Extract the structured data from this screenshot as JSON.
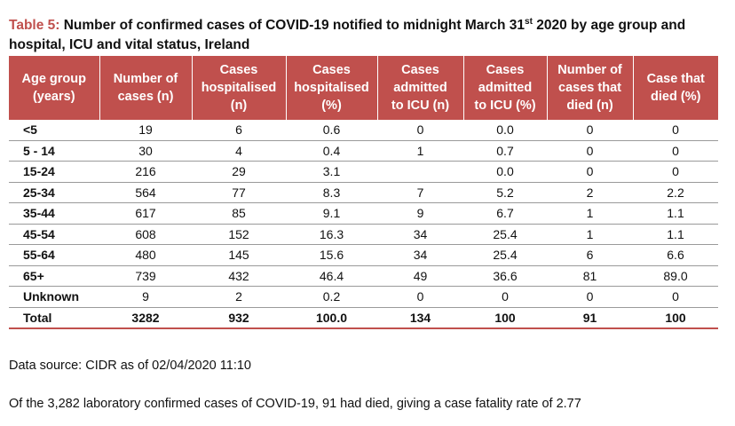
{
  "caption": {
    "label": "Table 5:",
    "text_before_sup": " Number of confirmed cases of COVID-19 notified to midnight March 31",
    "superscript": "st",
    "text_after_sup": " 2020 by age group and hospital, ICU and vital status, Ireland"
  },
  "table": {
    "headers": [
      "Age group\n(years)",
      "Number of\ncases (n)",
      "Cases\nhospitalised\n(n)",
      "Cases\nhospitalised\n(%)",
      "Cases\nadmitted\nto ICU (n)",
      "Cases\nadmitted\nto ICU (%)",
      "Number of\ncases that\ndied (n)",
      "Case that\ndied (%)"
    ],
    "rows": [
      [
        "<5",
        "19",
        "6",
        "0.6",
        "0",
        "0.0",
        "0",
        "0"
      ],
      [
        "5 - 14",
        "30",
        "4",
        "0.4",
        "1",
        "0.7",
        "0",
        "0"
      ],
      [
        "15-24",
        "216",
        "29",
        "3.1",
        "",
        "0.0",
        "0",
        "0"
      ],
      [
        "25-34",
        "564",
        "77",
        "8.3",
        "7",
        "5.2",
        "2",
        "2.2"
      ],
      [
        "35-44",
        "617",
        "85",
        "9.1",
        "9",
        "6.7",
        "1",
        "1.1"
      ],
      [
        "45-54",
        "608",
        "152",
        "16.3",
        "34",
        "25.4",
        "1",
        "1.1"
      ],
      [
        "55-64",
        "480",
        "145",
        "15.6",
        "34",
        "25.4",
        "6",
        "6.6"
      ],
      [
        "65+",
        "739",
        "432",
        "46.4",
        "49",
        "36.6",
        "81",
        "89.0"
      ],
      [
        "Unknown",
        "9",
        "2",
        "0.2",
        "0",
        "0",
        "0",
        "0"
      ]
    ],
    "total_row": [
      "Total",
      "3282",
      "932",
      "100.0",
      "134",
      "100",
      "91",
      "100"
    ]
  },
  "data_source": "Data source: CIDR as of 02/04/2020 11:10",
  "note": "Of the 3,282 laboratory confirmed cases of COVID-19, 91 had died, giving a case fatality rate of 2.77",
  "colors": {
    "accent": "#c0504d",
    "header_text": "#ffffff",
    "row_rule": "#9a9a9a"
  }
}
